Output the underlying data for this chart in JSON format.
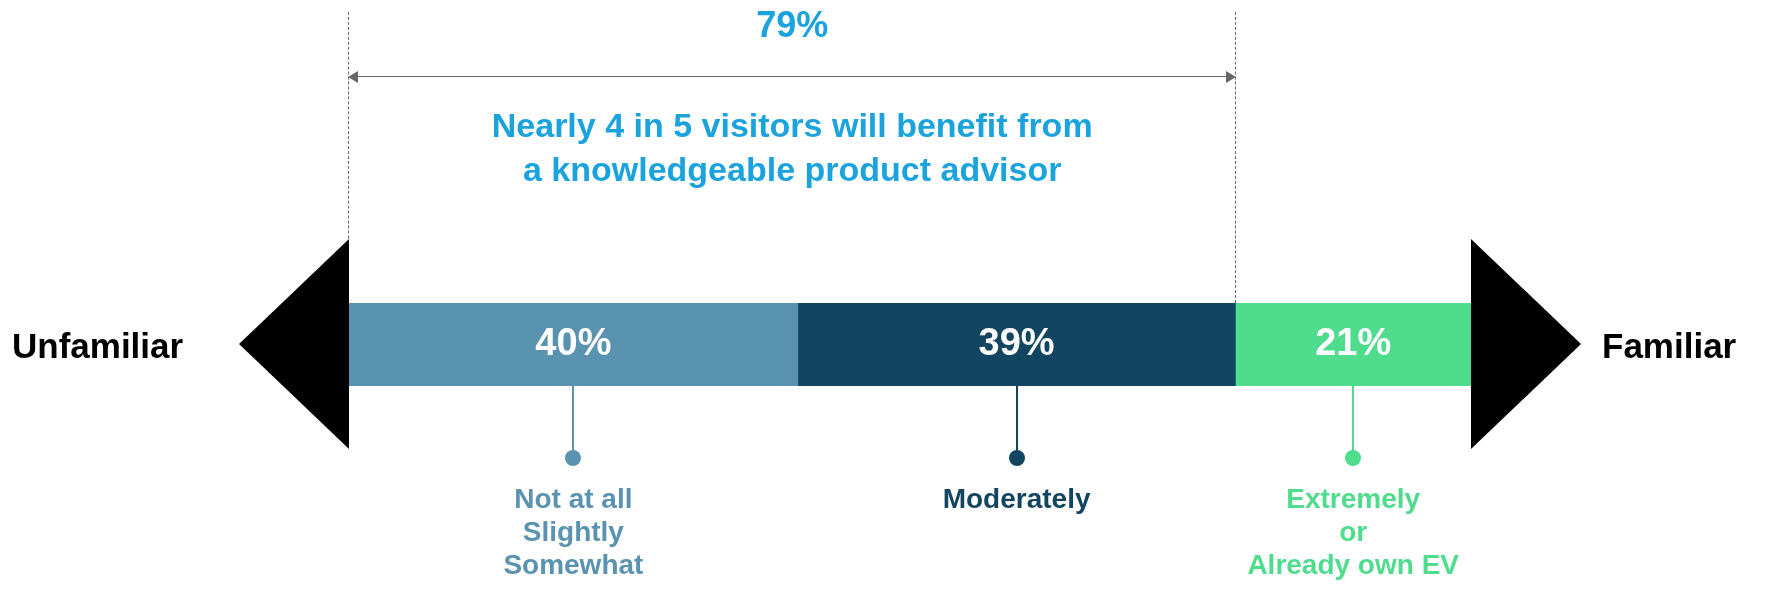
{
  "chart_data": {
    "type": "bar",
    "orientation": "horizontal",
    "stacked": true,
    "categories": [
      null
    ],
    "series": [
      {
        "name": "Not at all\nSlightly\nSomewhat",
        "color": "#5a93b0",
        "values": [
          40
        ],
        "value_labels": [
          "40%"
        ]
      },
      {
        "name": "Moderately",
        "color": "#124660",
        "values": [
          39
        ],
        "value_labels": [
          "39%"
        ]
      },
      {
        "name": "Extremely\nor\nAlready own EV",
        "color": "#4fdc8c",
        "values": [
          21
        ],
        "value_labels": [
          "21%"
        ]
      }
    ],
    "tick_labels": false,
    "legend": "bottom",
    "annotations": [
      "79%",
      "Nearly 4 in 5 visitors will benefit from\na knowledgeable product advisor",
      "Unfamiliar",
      "Familiar"
    ]
  }
}
